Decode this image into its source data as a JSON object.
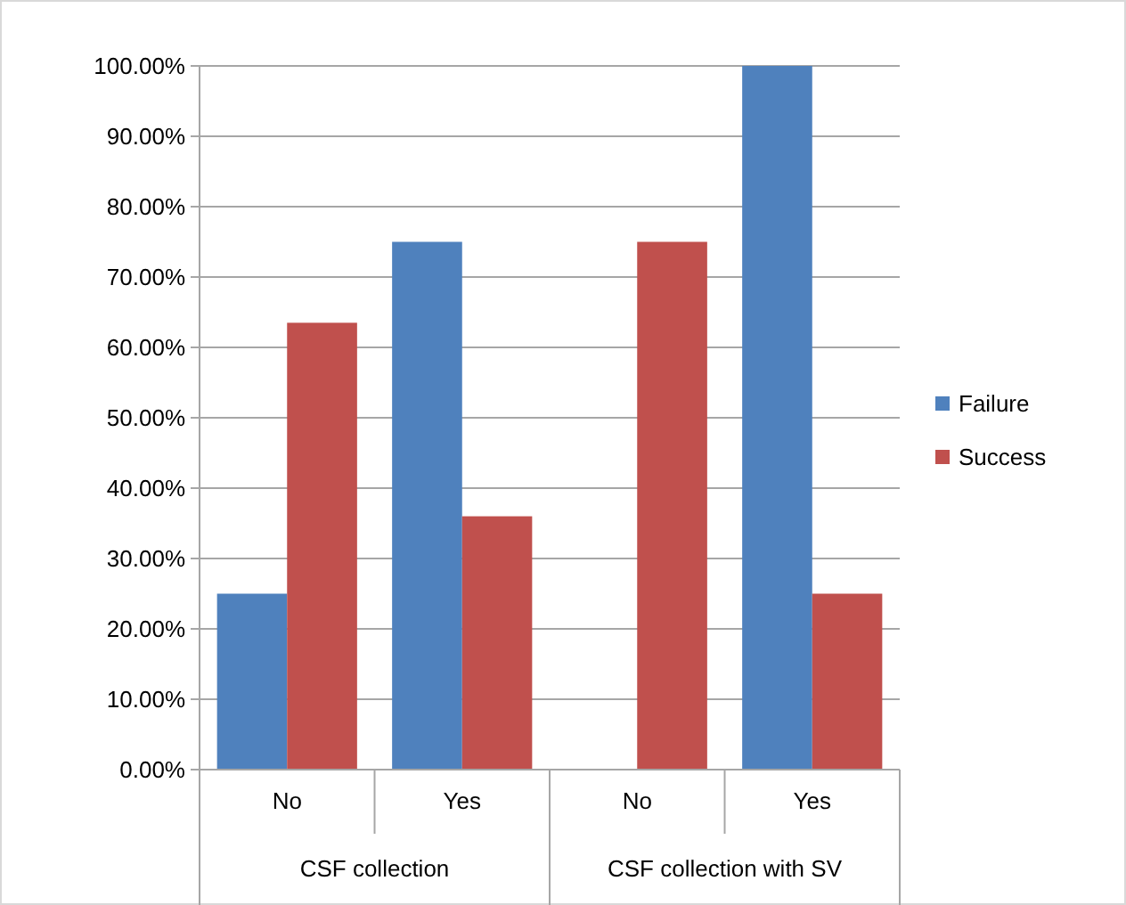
{
  "chart_data": {
    "type": "bar",
    "categories": [
      "No",
      "Yes",
      "No",
      "Yes"
    ],
    "annotations": [
      "CSF collection",
      "CSF collection with SV"
    ],
    "series": [
      {
        "name": "Failure",
        "color": "#4f81bd",
        "values": [
          25,
          75,
          0,
          100
        ]
      },
      {
        "name": "Success",
        "color": "#c0504d",
        "values": [
          63.5,
          36,
          75,
          25
        ]
      }
    ],
    "ylim": [
      0,
      100
    ],
    "yticks": [
      {
        "value": 0,
        "label": "0.00%"
      },
      {
        "value": 10,
        "label": "10.00%"
      },
      {
        "value": 20,
        "label": "20.00%"
      },
      {
        "value": 30,
        "label": "30.00%"
      },
      {
        "value": 40,
        "label": "40.00%"
      },
      {
        "value": 50,
        "label": "50.00%"
      },
      {
        "value": 60,
        "label": "60.00%"
      },
      {
        "value": 70,
        "label": "70.00%"
      },
      {
        "value": 80,
        "label": "80.00%"
      },
      {
        "value": 90,
        "label": "90.00%"
      },
      {
        "value": 100,
        "label": "100.00%"
      }
    ],
    "grid": "y",
    "legend": "right"
  }
}
